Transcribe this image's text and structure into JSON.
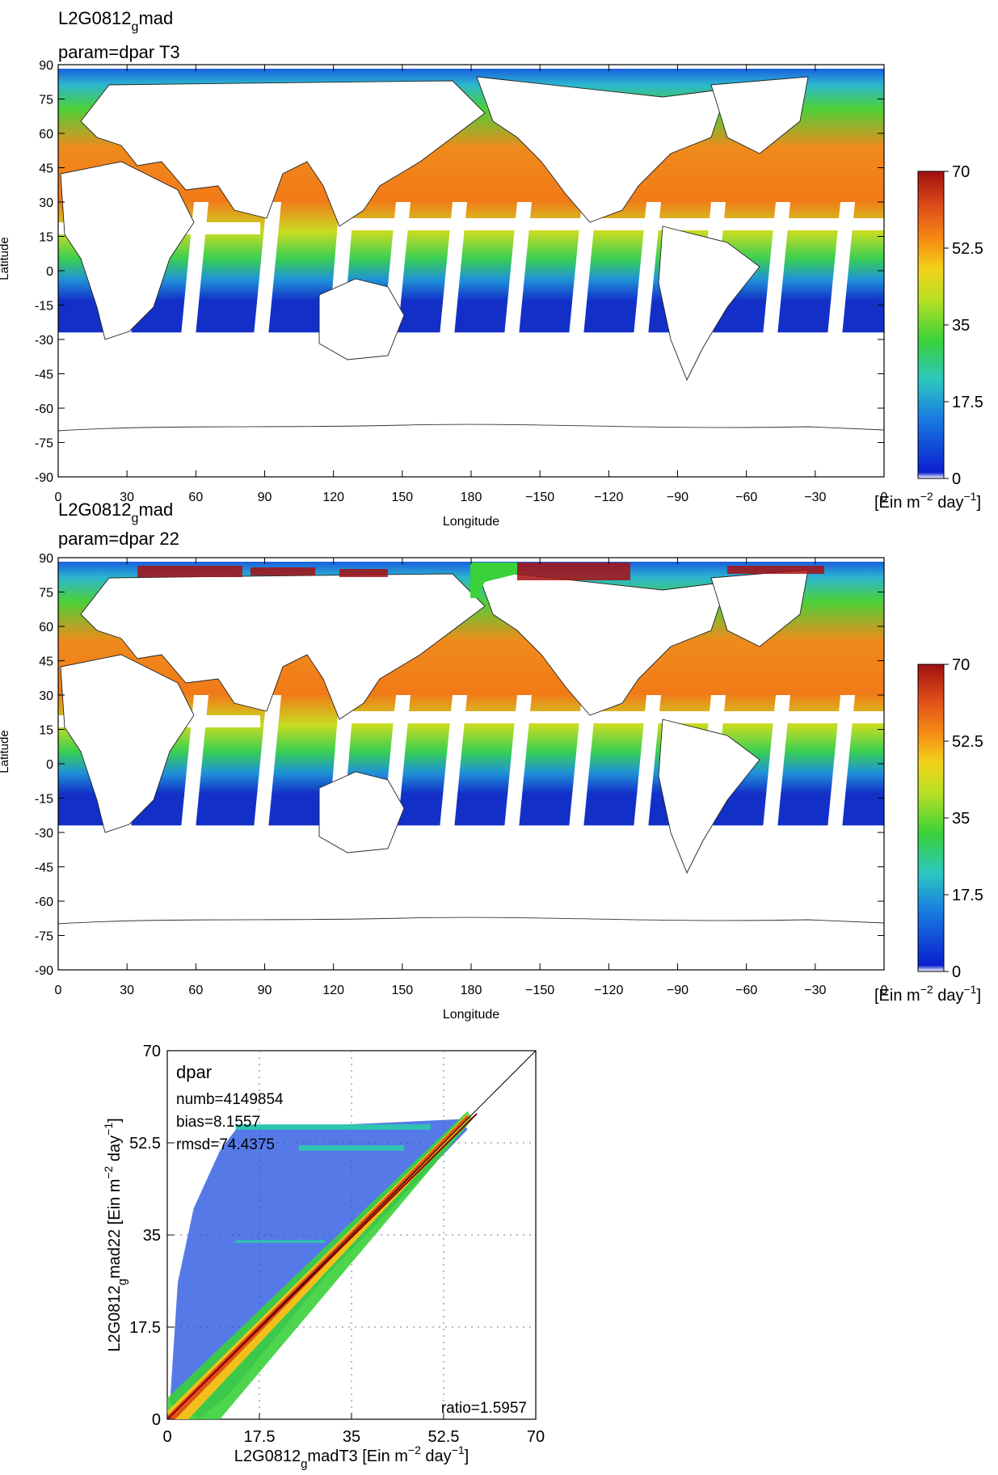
{
  "map_top": {
    "title_line1": "L2G0812",
    "title_sub": "g",
    "title_suffix": "mad",
    "title_line2": "param=dpar  T3"
  },
  "map_bottom": {
    "title_line1": "L2G0812",
    "title_sub": "g",
    "title_suffix": "mad",
    "title_line2": "param=dpar  22"
  },
  "map_axes": {
    "ylabel": "Latitude",
    "xlabel": "Longitude",
    "lat_ticks": [
      "90",
      "75",
      "60",
      "45",
      "30",
      "15",
      "0",
      "-15",
      "-30",
      "-45",
      "-60",
      "-75",
      "-90"
    ],
    "lon_ticks": [
      "0",
      "30",
      "60",
      "90",
      "120",
      "150",
      "180",
      "−150",
      "−120",
      "−90",
      "−60",
      "−30",
      "0"
    ]
  },
  "colorbar": {
    "ticks": [
      "0",
      "17.5",
      "35",
      "52.5",
      "70"
    ],
    "unit_prefix": "[Ein m",
    "unit_exp1": "−2",
    "unit_mid": " day",
    "unit_exp2": "−1",
    "unit_close": "]",
    "range": [
      0,
      70
    ],
    "colors": [
      "#ffffff",
      "#0a1fd0",
      "#1a7ee0",
      "#2cc7c0",
      "#3ad13a",
      "#b7e024",
      "#f2d21a",
      "#f58a14",
      "#e0501a",
      "#a01010"
    ]
  },
  "scatter": {
    "param_label": "dpar",
    "numb": "numb=4149854",
    "bias": "bias=8.1557",
    "rmsd": "rmsd=74.4375",
    "ratio": "ratio=1.5957",
    "ticks": [
      "0",
      "17.5",
      "35",
      "52.5",
      "70"
    ],
    "xlabel_a": "L2G0812",
    "xlabel_sub": "g",
    "xlabel_b": "madT3 [Ein m",
    "xlabel_exp1": "−2",
    "xlabel_c": " day",
    "xlabel_exp2": "−1",
    "xlabel_d": "]",
    "ylabel_a": "L2G0812",
    "ylabel_sub": "g",
    "ylabel_b": "mad22 [Ein m",
    "ylabel_exp1": "−2",
    "ylabel_c": " day",
    "ylabel_exp2": "−1",
    "ylabel_d": "]",
    "range": [
      0,
      70
    ]
  }
}
